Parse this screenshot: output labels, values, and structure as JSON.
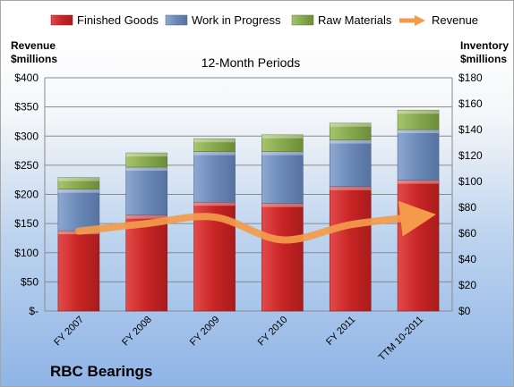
{
  "chart_data": {
    "type": "bar",
    "subtitle": "12-Month Periods",
    "company": "RBC Bearings",
    "left_axis_label": [
      "Revenue",
      "$millions"
    ],
    "right_axis_label": [
      "Inventory",
      "$millions"
    ],
    "categories": [
      "FY 2007",
      "FY 2008",
      "FY 2009",
      "FY 2010",
      "FY 2011",
      "TTM 10-2011"
    ],
    "series": [
      {
        "name": "Finished Goods",
        "color": "#cc2a2a",
        "axis": "right",
        "values": [
          62,
          74,
          84,
          83,
          96,
          101
        ]
      },
      {
        "name": "Work in Progress",
        "color": "#6f8fbd",
        "axis": "right",
        "values": [
          32,
          37,
          39,
          40,
          36,
          39
        ]
      },
      {
        "name": "Raw Materials",
        "color": "#8dac55",
        "axis": "right",
        "values": [
          9,
          11,
          10,
          13,
          13,
          15
        ]
      },
      {
        "name": "Revenue",
        "color": "#f39b4a",
        "axis": "left",
        "type": "line",
        "values": [
          137,
          150,
          161,
          122,
          148,
          162
        ]
      }
    ],
    "left_axis": {
      "ticks": [
        "$400",
        "$350",
        "$300",
        "$250",
        "$200",
        "$150",
        "$100",
        "$50",
        "$-"
      ],
      "ylim": [
        0,
        400
      ]
    },
    "right_axis": {
      "ticks": [
        "$180",
        "$160",
        "$140",
        "$120",
        "$100",
        "$80",
        "$60",
        "$40",
        "$20",
        "$0"
      ],
      "ylim": [
        0,
        180
      ]
    },
    "stacked": true,
    "grid": true,
    "legend": "top"
  }
}
